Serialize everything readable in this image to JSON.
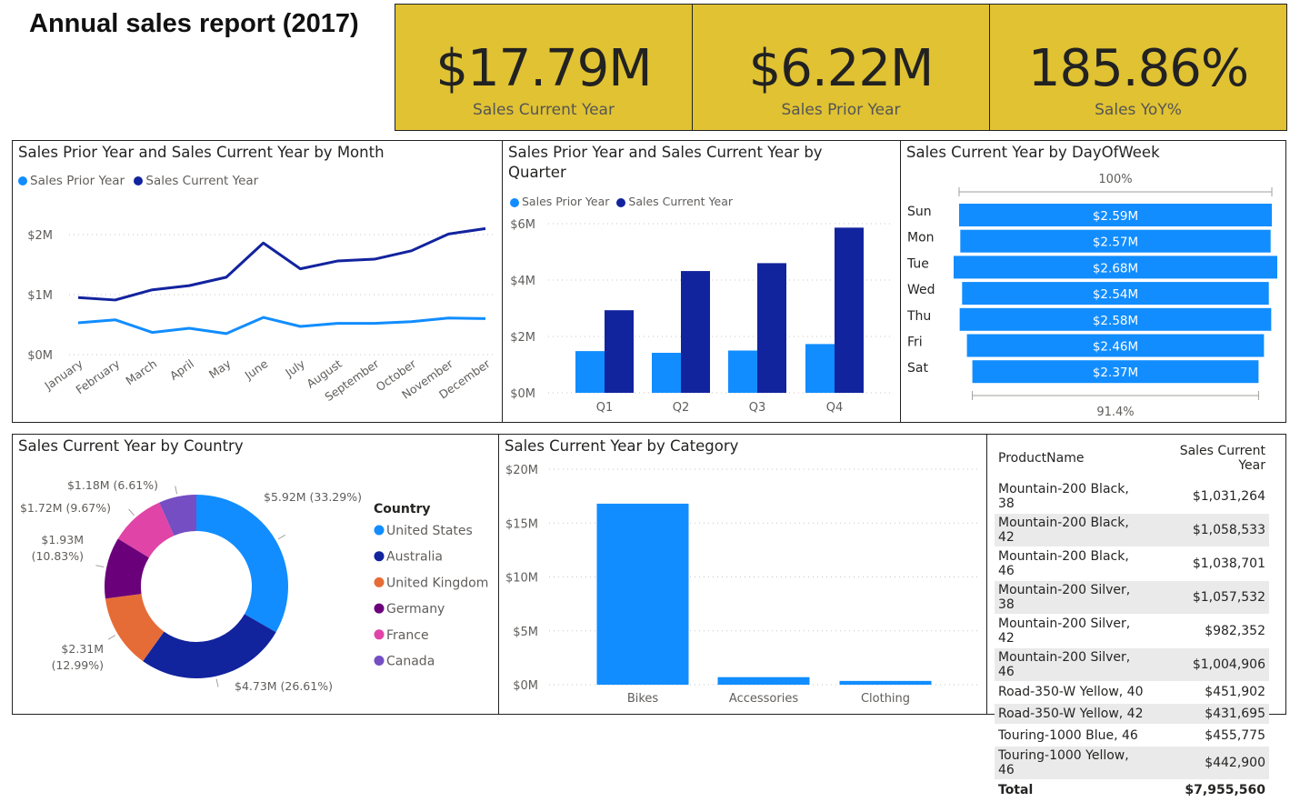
{
  "title": "Annual sales report (2017)",
  "kpis": [
    {
      "value": "$17.79M",
      "label": "Sales Current Year"
    },
    {
      "value": "$6.22M",
      "label": "Sales Prior Year"
    },
    {
      "value": "185.86%",
      "label": "Sales YoY%"
    }
  ],
  "colors": {
    "light_blue": "#118dff",
    "dark_blue": "#12239e",
    "kpi_bg": "#e0c232"
  },
  "month_chart": {
    "title": "Sales Prior Year and Sales Current Year by Month",
    "legend": [
      "Sales Prior Year",
      "Sales Current Year"
    ],
    "chart_data": {
      "type": "line",
      "categories": [
        "January",
        "February",
        "March",
        "April",
        "May",
        "June",
        "July",
        "August",
        "September",
        "October",
        "November",
        "December"
      ],
      "y_ticks": [
        "$0M",
        "$1M",
        "$2M"
      ],
      "ylim": [
        0,
        2.4
      ],
      "series": [
        {
          "name": "Sales Prior Year",
          "values": [
            0.53,
            0.58,
            0.37,
            0.44,
            0.35,
            0.62,
            0.47,
            0.52,
            0.52,
            0.55,
            0.61,
            0.6
          ]
        },
        {
          "name": "Sales Current Year",
          "values": [
            0.95,
            0.91,
            1.08,
            1.15,
            1.29,
            1.86,
            1.43,
            1.56,
            1.59,
            1.73,
            2.01,
            2.1
          ]
        }
      ]
    }
  },
  "quarter_chart": {
    "title": "Sales Prior Year and Sales Current Year by Quarter",
    "legend": [
      "Sales Prior Year",
      "Sales Current Year"
    ],
    "chart_data": {
      "type": "bar",
      "categories": [
        "Q1",
        "Q2",
        "Q3",
        "Q4"
      ],
      "y_ticks": [
        "$0M",
        "$2M",
        "$4M",
        "$6M"
      ],
      "ylim": [
        0,
        6
      ],
      "series": [
        {
          "name": "Sales Prior Year",
          "values": [
            1.48,
            1.42,
            1.5,
            1.73
          ]
        },
        {
          "name": "Sales Current Year",
          "values": [
            2.93,
            4.32,
            4.6,
            5.86
          ]
        }
      ]
    }
  },
  "dow_chart": {
    "title": "Sales Current Year by DayOfWeek",
    "top_label": "100%",
    "bottom_label": "91.4%",
    "chart_data": {
      "type": "bar",
      "categories": [
        "Sun",
        "Mon",
        "Tue",
        "Wed",
        "Thu",
        "Fri",
        "Sat"
      ],
      "values": [
        2.59,
        2.57,
        2.68,
        2.54,
        2.58,
        2.46,
        2.37
      ],
      "labels": [
        "$2.59M",
        "$2.57M",
        "$2.68M",
        "$2.54M",
        "$2.58M",
        "$2.46M",
        "$2.37M"
      ]
    }
  },
  "country_chart": {
    "title": "Sales Current Year by Country",
    "legend_title": "Country",
    "chart_data": {
      "type": "pie",
      "categories": [
        "United States",
        "Australia",
        "United Kingdom",
        "Germany",
        "France",
        "Canada"
      ],
      "values": [
        33.29,
        26.61,
        12.99,
        10.83,
        9.67,
        6.61
      ],
      "colors": [
        "#118dff",
        "#12239e",
        "#e66c37",
        "#6b007b",
        "#e044a7",
        "#744ec2"
      ],
      "labels": [
        "$5.92M (33.29%)",
        "$4.73M (26.61%)",
        "$2.31M (12.99%)",
        "$1.93M (10.83%)",
        "$1.72M (9.67%)",
        "$1.18M (6.61%)"
      ]
    }
  },
  "category_chart": {
    "title": "Sales Current Year by Category",
    "chart_data": {
      "type": "bar",
      "categories": [
        "Bikes",
        "Accessories",
        "Clothing"
      ],
      "values": [
        16.8,
        0.7,
        0.35
      ],
      "y_ticks": [
        "$0M",
        "$5M",
        "$10M",
        "$15M",
        "$20M"
      ],
      "ylim": [
        0,
        20
      ]
    }
  },
  "table": {
    "headers": [
      "ProductName",
      "Sales Current Year"
    ],
    "rows": [
      [
        "Mountain-200 Black, 38",
        "$1,031,264"
      ],
      [
        "Mountain-200 Black, 42",
        "$1,058,533"
      ],
      [
        "Mountain-200 Black, 46",
        "$1,038,701"
      ],
      [
        "Mountain-200 Silver, 38",
        "$1,057,532"
      ],
      [
        "Mountain-200 Silver, 42",
        "$982,352"
      ],
      [
        "Mountain-200 Silver, 46",
        "$1,004,906"
      ],
      [
        "Road-350-W Yellow, 40",
        "$451,902"
      ],
      [
        "Road-350-W Yellow, 42",
        "$431,695"
      ],
      [
        "Touring-1000 Blue, 46",
        "$455,775"
      ],
      [
        "Touring-1000 Yellow, 46",
        "$442,900"
      ]
    ],
    "total_label": "Total",
    "total_value": "$7,955,560"
  }
}
